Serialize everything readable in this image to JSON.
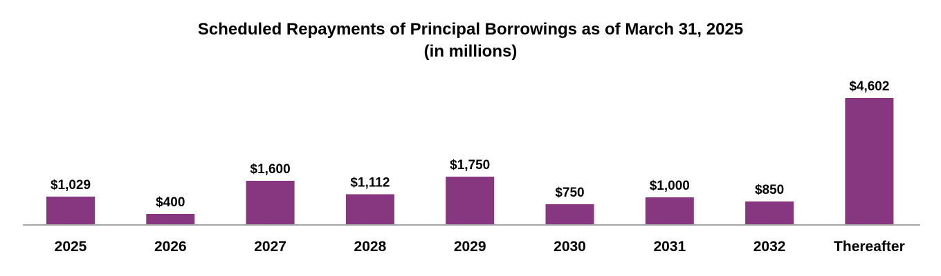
{
  "chart_data": {
    "type": "bar",
    "title": "Scheduled Repayments of Principal Borrowings as of March 31, 2025",
    "subtitle": "(in millions)",
    "categories": [
      "2025",
      "2026",
      "2027",
      "2028",
      "2029",
      "2030",
      "2031",
      "2032",
      "Thereafter"
    ],
    "values": [
      1029,
      400,
      1600,
      1112,
      1750,
      750,
      1000,
      850,
      4602
    ],
    "data_labels": [
      "$1,029",
      "$400",
      "$1,600",
      "$1,112",
      "$1,750",
      "$750",
      "$1,000",
      "$850",
      "$4,602"
    ],
    "xlabel": "",
    "ylabel": "",
    "ylim": [
      0,
      4602
    ],
    "grid": false,
    "legend": "none",
    "bar_color": "#87377F",
    "axis_color": "#A6A6A6"
  }
}
